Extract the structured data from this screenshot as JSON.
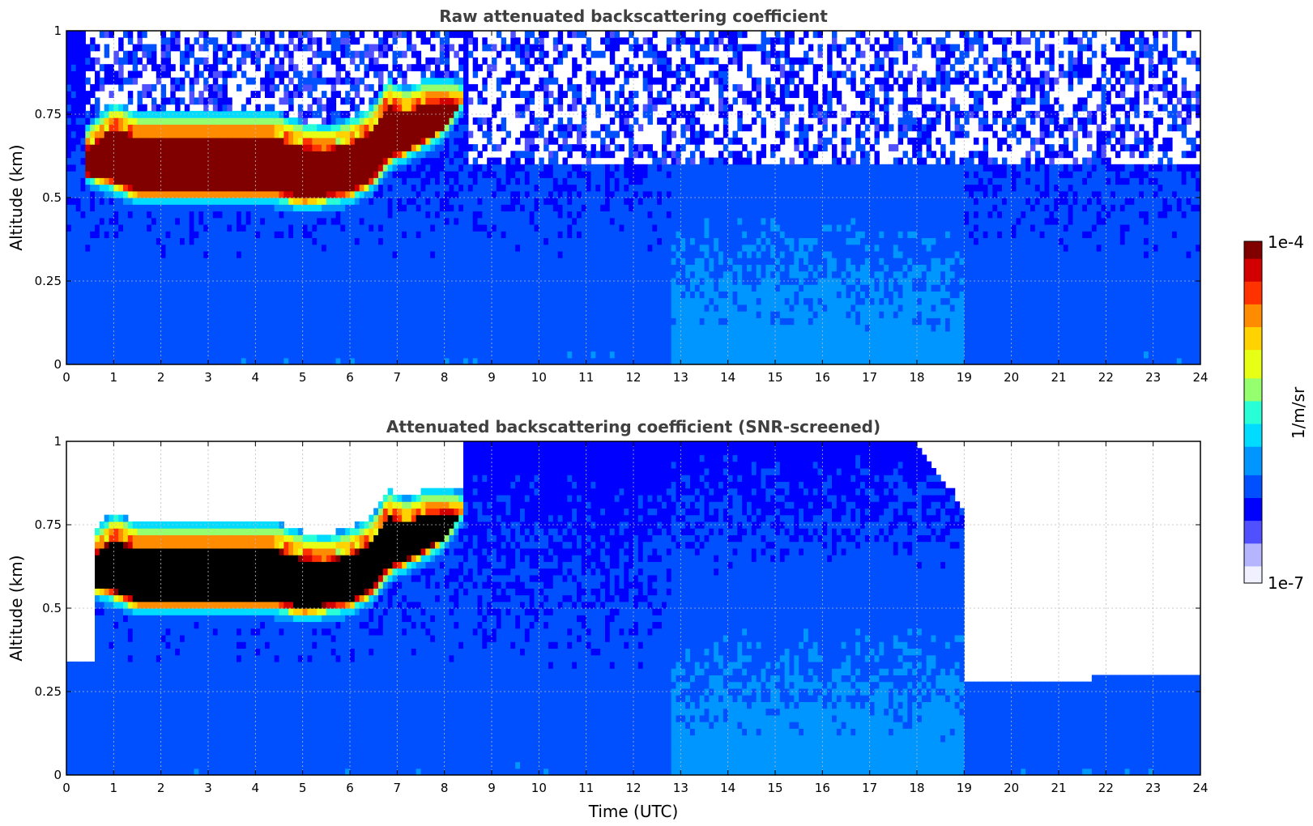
{
  "colors": {
    "colormap": [
      "#f0f0ff",
      "#b4b4ff",
      "#5050ff",
      "#0000ff",
      "#0050ff",
      "#0096ff",
      "#00dcff",
      "#28ffd7",
      "#96ff6e",
      "#e6ff14",
      "#ffd200",
      "#ff8c00",
      "#ff3200",
      "#d20000",
      "#800000"
    ],
    "saturated_black": "#000000",
    "grid": "#bbbbbb",
    "title": "#404040"
  },
  "colorbar": {
    "top_label": "1e-4",
    "bottom_label": "1e-7",
    "unit_label": "1/m/sr",
    "vmin": 1e-07,
    "vmax": 0.0001,
    "scale": "log"
  },
  "chart_data": [
    {
      "type": "heatmap",
      "title": "Raw attenuated backscattering coefficient",
      "xlabel": "",
      "ylabel": "Altitude (km)",
      "xlim": [
        0,
        24
      ],
      "ylim": [
        0,
        1
      ],
      "x_ticks": [
        "0",
        "1",
        "2",
        "3",
        "4",
        "5",
        "6",
        "7",
        "8",
        "9",
        "10",
        "11",
        "12",
        "13",
        "14",
        "15",
        "16",
        "17",
        "18",
        "19",
        "20",
        "21",
        "22",
        "23",
        "24"
      ],
      "y_ticks": [
        "0",
        "0.25",
        "0.5",
        "0.75",
        "1"
      ],
      "grid": true,
      "cloud_layer": {
        "time": [
          0.45,
          1.0,
          1.5,
          2.0,
          3.0,
          4.0,
          4.4,
          5.0,
          5.5,
          6.0,
          6.5,
          6.8,
          7.2,
          7.6,
          8.0,
          8.4
        ],
        "base_km": [
          0.56,
          0.53,
          0.5,
          0.5,
          0.5,
          0.5,
          0.5,
          0.48,
          0.49,
          0.5,
          0.54,
          0.6,
          0.63,
          0.66,
          0.7,
          0.78
        ],
        "top_km": [
          0.66,
          0.73,
          0.7,
          0.7,
          0.7,
          0.7,
          0.7,
          0.67,
          0.66,
          0.68,
          0.72,
          0.8,
          0.77,
          0.8,
          0.8,
          0.79
        ]
      }
    },
    {
      "type": "heatmap",
      "title": "Attenuated backscattering coefficient (SNR-screened)",
      "xlabel": "Time (UTC)",
      "ylabel": "Altitude (km)",
      "xlim": [
        0,
        24
      ],
      "ylim": [
        0,
        1
      ],
      "x_ticks": [
        "0",
        "1",
        "2",
        "3",
        "4",
        "5",
        "6",
        "7",
        "8",
        "9",
        "10",
        "11",
        "12",
        "13",
        "14",
        "15",
        "16",
        "17",
        "18",
        "19",
        "20",
        "21",
        "22",
        "23",
        "24"
      ],
      "y_ticks": [
        "0",
        "0.25",
        "0.5",
        "0.75",
        "1"
      ],
      "grid": true,
      "cloud_layer": {
        "time": [
          0.45,
          1.0,
          1.5,
          2.0,
          3.0,
          4.0,
          4.4,
          5.0,
          5.5,
          6.0,
          6.5,
          6.8,
          7.2,
          7.6,
          8.0,
          8.4
        ],
        "base_km": [
          0.56,
          0.53,
          0.5,
          0.5,
          0.5,
          0.5,
          0.5,
          0.48,
          0.49,
          0.5,
          0.54,
          0.6,
          0.63,
          0.66,
          0.7,
          0.78
        ],
        "top_km": [
          0.66,
          0.73,
          0.7,
          0.7,
          0.7,
          0.7,
          0.7,
          0.67,
          0.66,
          0.68,
          0.72,
          0.8,
          0.77,
          0.8,
          0.8,
          0.79
        ]
      },
      "signal_top_km": {
        "time": [
          0,
          0.6,
          0.6,
          8.5,
          18.0,
          19.0,
          19.0,
          21.0,
          22.5,
          24.0
        ],
        "alt": [
          0.33,
          0.33,
          1.0,
          1.0,
          1.0,
          0.8,
          0.28,
          0.28,
          0.3,
          0.3
        ]
      }
    }
  ]
}
